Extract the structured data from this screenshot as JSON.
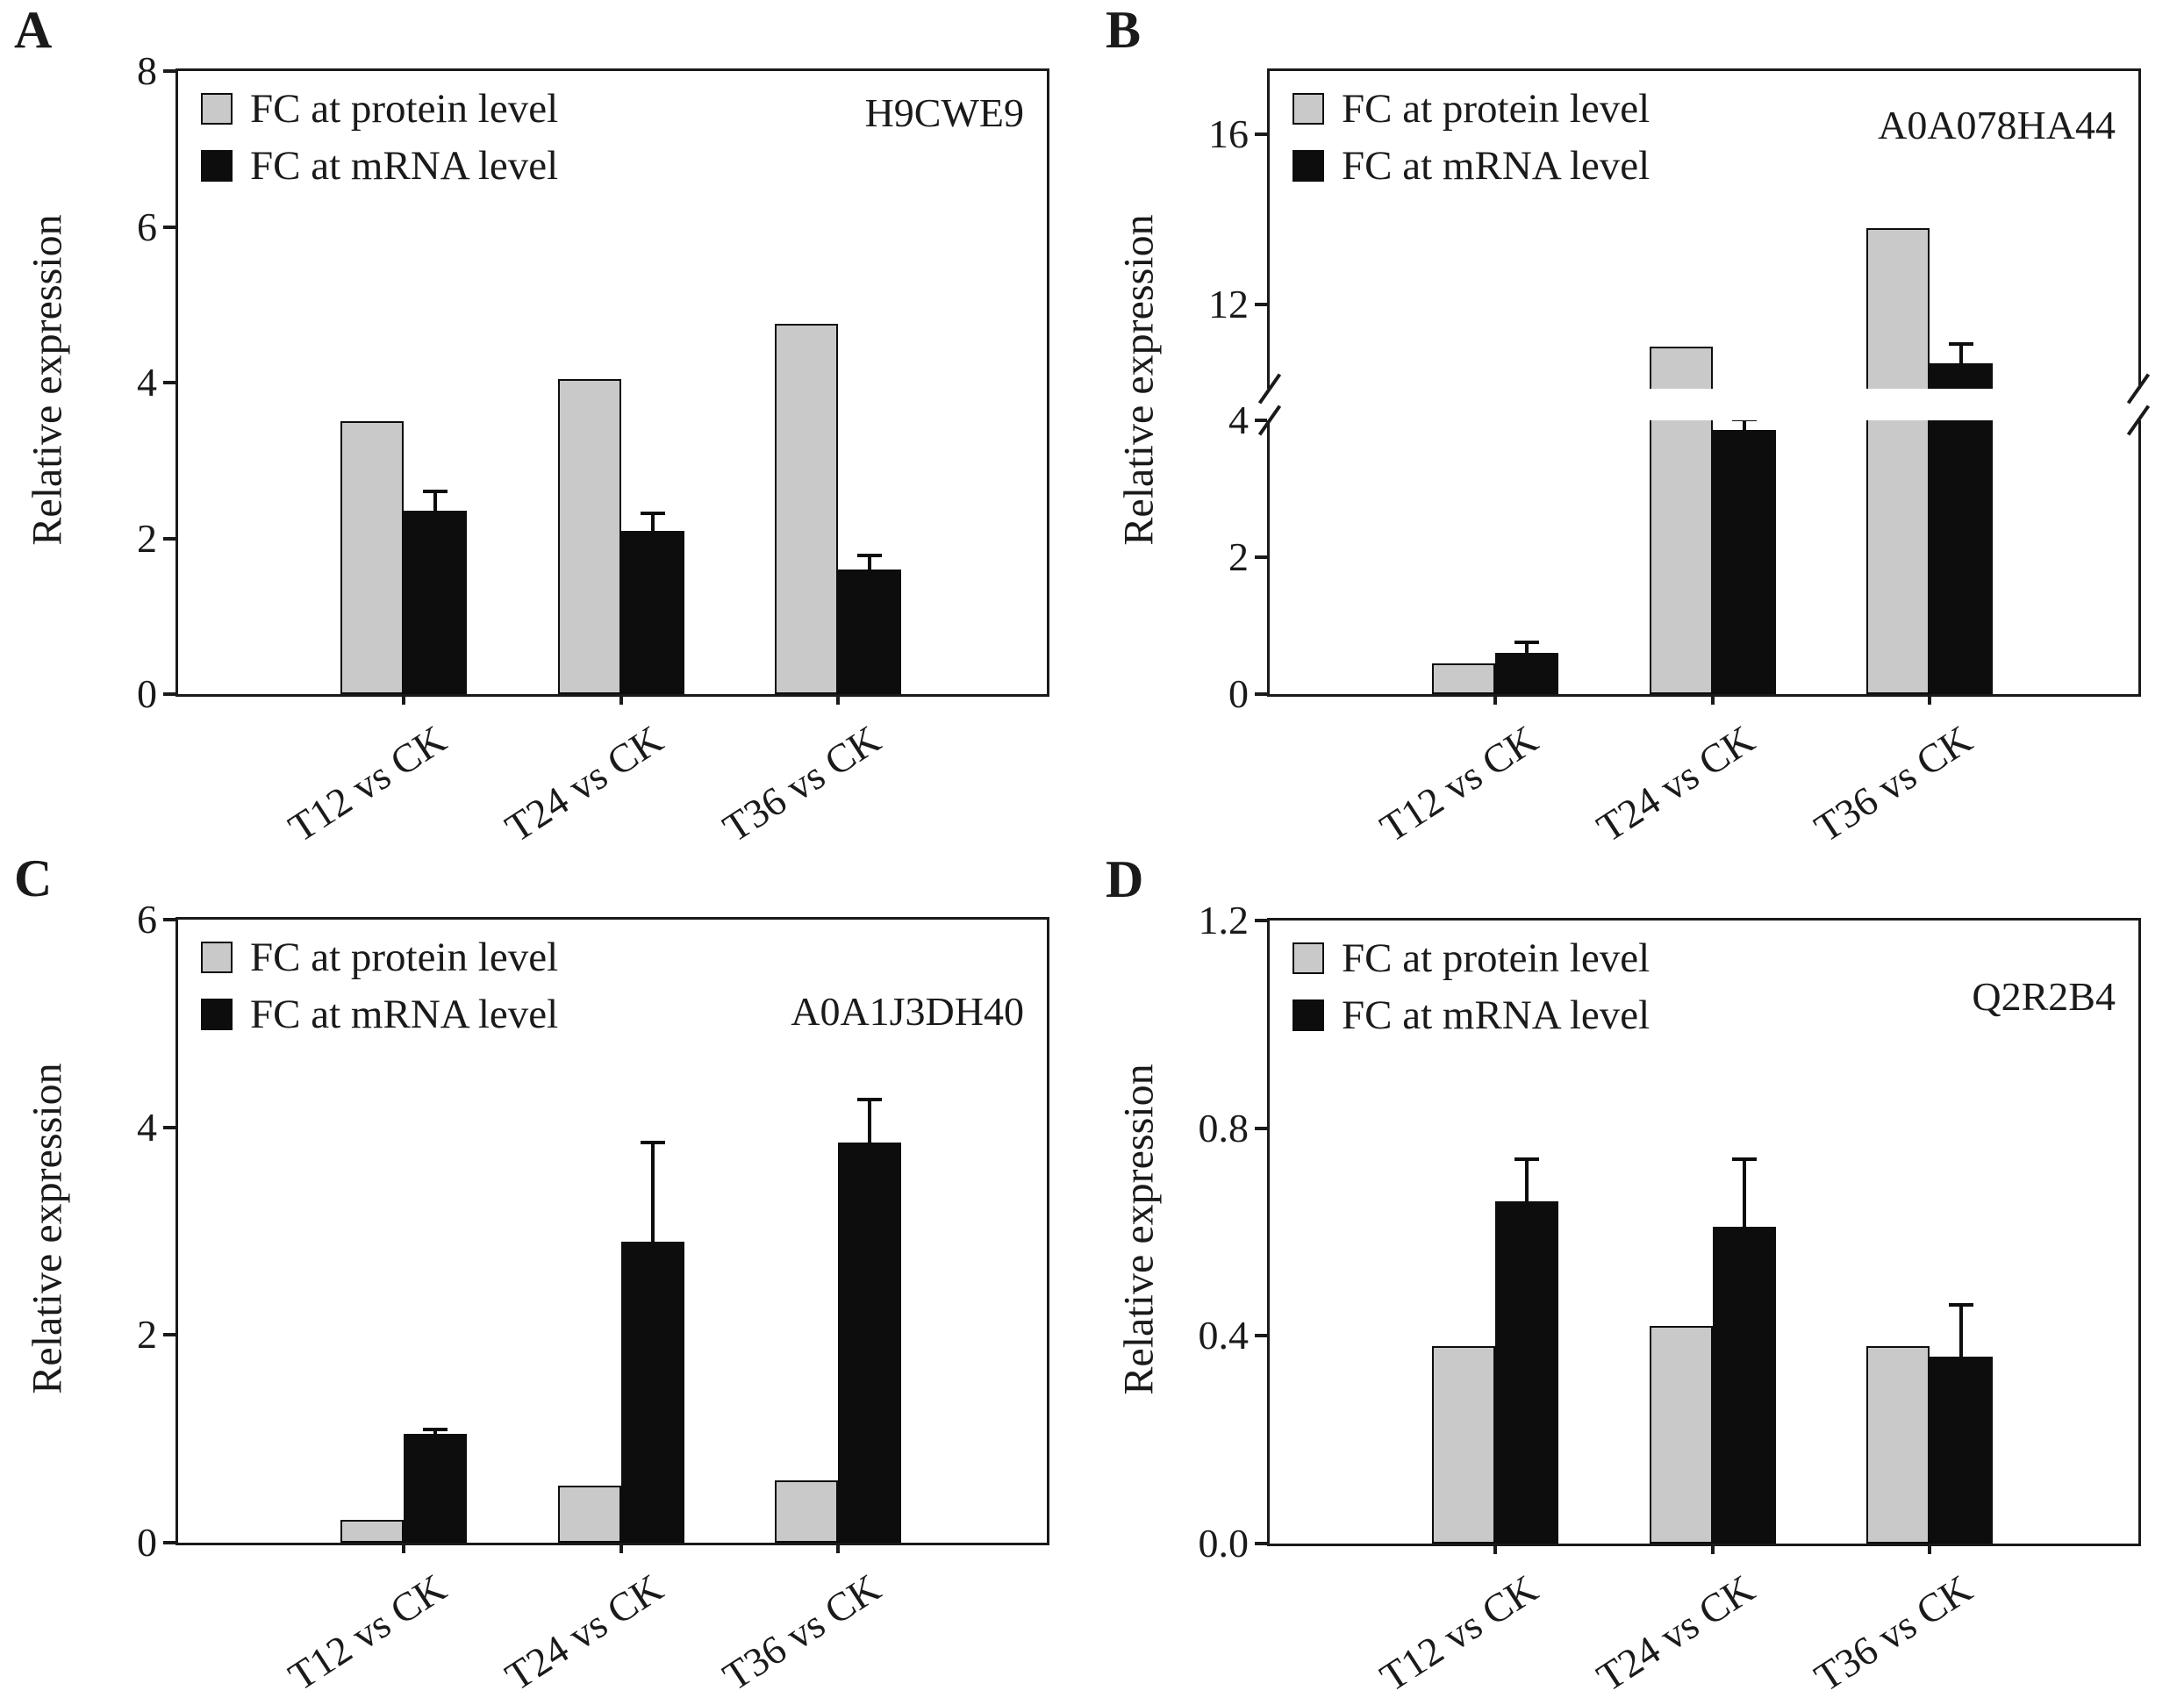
{
  "figure": {
    "background": "#ffffff",
    "text_color": "#1a1a1a",
    "bar_outline": "#0d0d0d",
    "protein_color": "#c9c9c9",
    "mrna_color": "#0d0d0d"
  },
  "chart_data": [
    {
      "type": "bar",
      "panel_label": "A",
      "annotation": "H9CWE9",
      "ylabel": "Relative expression",
      "categories": [
        "T12 vs CK",
        "T24 vs CK",
        "T36 vs CK"
      ],
      "series": [
        {
          "name": "FC at protein level",
          "color": "#c9c9c9",
          "values": [
            3.5,
            4.05,
            4.75
          ],
          "errors": [
            0,
            0,
            0
          ]
        },
        {
          "name": "FC at mRNA level",
          "color": "#0d0d0d",
          "values": [
            2.35,
            2.1,
            1.6
          ],
          "errors": [
            0.25,
            0.22,
            0.18
          ]
        }
      ],
      "ylim": [
        0,
        8
      ],
      "yticks": [
        {
          "value": 0,
          "label": "0"
        },
        {
          "value": 2,
          "label": "2"
        },
        {
          "value": 4,
          "label": "4"
        },
        {
          "value": 6,
          "label": "6"
        },
        {
          "value": 8,
          "label": "8"
        }
      ],
      "legend_position": "top-left",
      "annotation_top_frac": 0.035,
      "grid": false
    },
    {
      "type": "bar",
      "panel_label": "B",
      "annotation": "A0A078HA44",
      "ylabel": "Relative expression",
      "categories": [
        "T12 vs CK",
        "T24 vs CK",
        "T36 vs CK"
      ],
      "series": [
        {
          "name": "FC at protein level",
          "color": "#c9c9c9",
          "values": [
            0.45,
            11.0,
            13.8
          ],
          "errors": [
            0,
            0,
            0
          ]
        },
        {
          "name": "FC at mRNA level",
          "color": "#0d0d0d",
          "values": [
            0.6,
            3.85,
            10.6
          ],
          "errors": [
            0.15,
            0.3,
            0.45
          ]
        }
      ],
      "ylim": [
        0,
        17.5
      ],
      "axis_break": {
        "lower_max": 4,
        "upper_min": 10,
        "upper_max": 17.5,
        "lower_fraction": 0.44,
        "band_fraction": 0.05
      },
      "yticks": [
        {
          "value": 0,
          "label": "0"
        },
        {
          "value": 2,
          "label": "2"
        },
        {
          "value": 4,
          "label": "4"
        },
        {
          "value": 12,
          "label": "12"
        },
        {
          "value": 16,
          "label": "16"
        }
      ],
      "legend_position": "top-left",
      "annotation_top_frac": 0.055,
      "grid": false
    },
    {
      "type": "bar",
      "panel_label": "C",
      "annotation": "A0A1J3DH40",
      "ylabel": "Relative expression",
      "categories": [
        "T12 vs CK",
        "T24 vs CK",
        "T36 vs CK"
      ],
      "series": [
        {
          "name": "FC at protein level",
          "color": "#c9c9c9",
          "values": [
            0.22,
            0.55,
            0.6
          ],
          "errors": [
            0,
            0,
            0
          ]
        },
        {
          "name": "FC at mRNA level",
          "color": "#0d0d0d",
          "values": [
            1.05,
            2.9,
            3.85
          ],
          "errors": [
            0.04,
            0.95,
            0.42
          ]
        }
      ],
      "ylim": [
        0,
        6
      ],
      "yticks": [
        {
          "value": 0,
          "label": "0"
        },
        {
          "value": 2,
          "label": "2"
        },
        {
          "value": 4,
          "label": "4"
        },
        {
          "value": 6,
          "label": "6"
        }
      ],
      "legend_position": "top-left",
      "annotation_top_frac": 0.115,
      "grid": false
    },
    {
      "type": "bar",
      "panel_label": "D",
      "annotation": "Q2R2B4",
      "ylabel": "Relative expression",
      "categories": [
        "T12 vs CK",
        "T24 vs CK",
        "T36 vs CK"
      ],
      "series": [
        {
          "name": "FC at protein level",
          "color": "#c9c9c9",
          "values": [
            0.38,
            0.42,
            0.38
          ],
          "errors": [
            0,
            0,
            0
          ]
        },
        {
          "name": "FC at mRNA level",
          "color": "#0d0d0d",
          "values": [
            0.66,
            0.61,
            0.36
          ],
          "errors": [
            0.08,
            0.13,
            0.1
          ]
        }
      ],
      "ylim": [
        0,
        1.2
      ],
      "yticks": [
        {
          "value": 0,
          "label": "0.0"
        },
        {
          "value": 0.4,
          "label": "0.4"
        },
        {
          "value": 0.8,
          "label": "0.8"
        },
        {
          "value": 1.2,
          "label": "1.2"
        }
      ],
      "legend_position": "top-left",
      "annotation_top_frac": 0.09,
      "grid": false
    }
  ]
}
